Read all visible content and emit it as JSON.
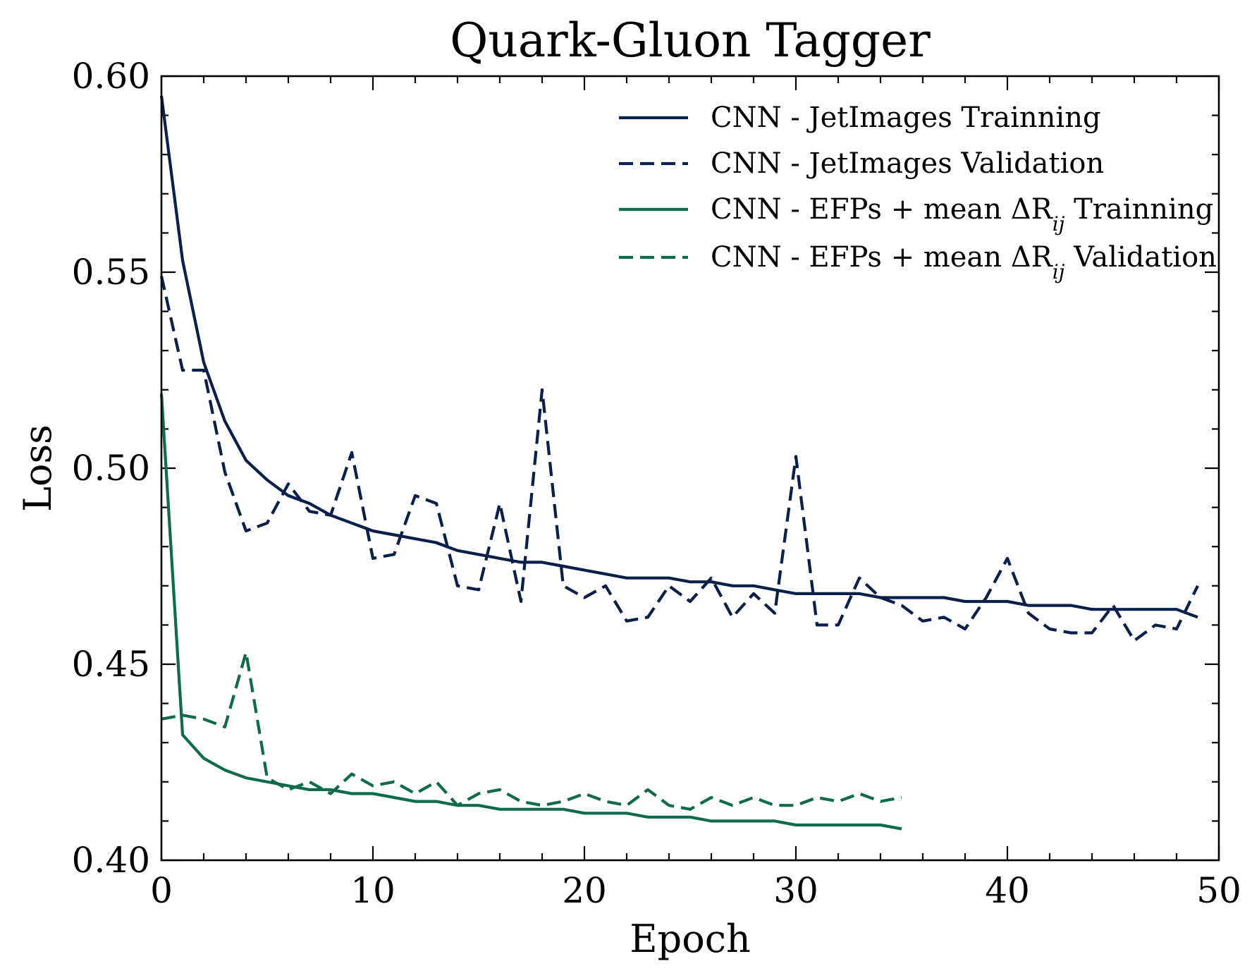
{
  "chart_data": {
    "type": "line",
    "title": "Quark-Gluon Tagger",
    "xlabel": "Epoch",
    "ylabel": "Loss",
    "xlim": [
      0,
      50
    ],
    "ylim": [
      0.4,
      0.6
    ],
    "xticks": [
      0,
      10,
      20,
      30,
      40,
      50
    ],
    "xtick_labels": [
      "0",
      "10",
      "20",
      "30",
      "40",
      "50"
    ],
    "yticks": [
      0.4,
      0.45,
      0.5,
      0.55,
      0.6
    ],
    "ytick_labels": [
      "0.40",
      "0.45",
      "0.50",
      "0.55",
      "0.60"
    ],
    "grid": false,
    "legend_position": "top-right",
    "series": [
      {
        "name": "CNN - JetImages Trainning",
        "legend_prefix": "CNN - JetImages Trainning",
        "legend_suffix": "",
        "color": "#0a1f4a",
        "style": "solid",
        "x": [
          0,
          1,
          2,
          3,
          4,
          5,
          6,
          7,
          8,
          9,
          10,
          11,
          12,
          13,
          14,
          15,
          16,
          17,
          18,
          19,
          20,
          21,
          22,
          23,
          24,
          25,
          26,
          27,
          28,
          29,
          30,
          31,
          32,
          33,
          34,
          35,
          36,
          37,
          38,
          39,
          40,
          41,
          42,
          43,
          44,
          45,
          46,
          47,
          48,
          49
        ],
        "y": [
          0.595,
          0.553,
          0.527,
          0.512,
          0.502,
          0.497,
          0.493,
          0.491,
          0.488,
          0.486,
          0.484,
          0.483,
          0.482,
          0.481,
          0.479,
          0.478,
          0.477,
          0.476,
          0.476,
          0.475,
          0.474,
          0.473,
          0.472,
          0.472,
          0.472,
          0.471,
          0.471,
          0.47,
          0.47,
          0.469,
          0.468,
          0.468,
          0.468,
          0.468,
          0.467,
          0.467,
          0.467,
          0.467,
          0.466,
          0.466,
          0.466,
          0.465,
          0.465,
          0.465,
          0.464,
          0.464,
          0.464,
          0.464,
          0.464,
          0.462
        ]
      },
      {
        "name": "CNN - JetImages Validation",
        "legend_prefix": "CNN - JetImages Validation",
        "legend_suffix": "",
        "color": "#0a1f4a",
        "style": "dashed",
        "x": [
          0,
          1,
          2,
          3,
          4,
          5,
          6,
          7,
          8,
          9,
          10,
          11,
          12,
          13,
          14,
          15,
          16,
          17,
          18,
          19,
          20,
          21,
          22,
          23,
          24,
          25,
          26,
          27,
          28,
          29,
          30,
          31,
          32,
          33,
          34,
          35,
          36,
          37,
          38,
          39,
          40,
          41,
          42,
          43,
          44,
          45,
          46,
          47,
          48,
          49
        ],
        "y": [
          0.549,
          0.525,
          0.525,
          0.499,
          0.484,
          0.486,
          0.496,
          0.489,
          0.488,
          0.504,
          0.477,
          0.478,
          0.493,
          0.491,
          0.47,
          0.469,
          0.491,
          0.466,
          0.52,
          0.47,
          0.467,
          0.47,
          0.461,
          0.462,
          0.47,
          0.466,
          0.472,
          0.462,
          0.468,
          0.463,
          0.503,
          0.46,
          0.46,
          0.472,
          0.467,
          0.465,
          0.461,
          0.462,
          0.459,
          0.467,
          0.477,
          0.463,
          0.459,
          0.458,
          0.458,
          0.465,
          0.456,
          0.46,
          0.459,
          0.47
        ]
      },
      {
        "name": "CNN - EFPs + mean ΔR_ij Trainning",
        "legend_prefix": "CNN - EFPs + mean ΔR",
        "legend_sub": "ij",
        "legend_suffix": " Trainning",
        "color": "#0f6b4a",
        "style": "solid",
        "x": [
          0,
          1,
          2,
          3,
          4,
          5,
          6,
          7,
          8,
          9,
          10,
          11,
          12,
          13,
          14,
          15,
          16,
          17,
          18,
          19,
          20,
          21,
          22,
          23,
          24,
          25,
          26,
          27,
          28,
          29,
          30,
          31,
          32,
          33,
          34,
          35
        ],
        "y": [
          0.519,
          0.432,
          0.426,
          0.423,
          0.421,
          0.42,
          0.419,
          0.418,
          0.418,
          0.417,
          0.417,
          0.416,
          0.415,
          0.415,
          0.414,
          0.414,
          0.413,
          0.413,
          0.413,
          0.413,
          0.412,
          0.412,
          0.412,
          0.411,
          0.411,
          0.411,
          0.41,
          0.41,
          0.41,
          0.41,
          0.409,
          0.409,
          0.409,
          0.409,
          0.409,
          0.408
        ]
      },
      {
        "name": "CNN - EFPs + mean ΔR_ij Validation",
        "legend_prefix": "CNN - EFPs + mean ΔR",
        "legend_sub": "ij",
        "legend_suffix": " Validation",
        "color": "#0f6b4a",
        "style": "dashed",
        "x": [
          0,
          1,
          2,
          3,
          4,
          5,
          6,
          7,
          8,
          9,
          10,
          11,
          12,
          13,
          14,
          15,
          16,
          17,
          18,
          19,
          20,
          21,
          22,
          23,
          24,
          25,
          26,
          27,
          28,
          29,
          30,
          31,
          32,
          33,
          34,
          35
        ],
        "y": [
          0.436,
          0.437,
          0.436,
          0.434,
          0.453,
          0.421,
          0.418,
          0.42,
          0.417,
          0.422,
          0.419,
          0.42,
          0.417,
          0.42,
          0.414,
          0.417,
          0.418,
          0.415,
          0.414,
          0.415,
          0.417,
          0.415,
          0.414,
          0.418,
          0.414,
          0.413,
          0.416,
          0.414,
          0.416,
          0.414,
          0.414,
          0.416,
          0.415,
          0.417,
          0.415,
          0.416
        ]
      }
    ]
  }
}
